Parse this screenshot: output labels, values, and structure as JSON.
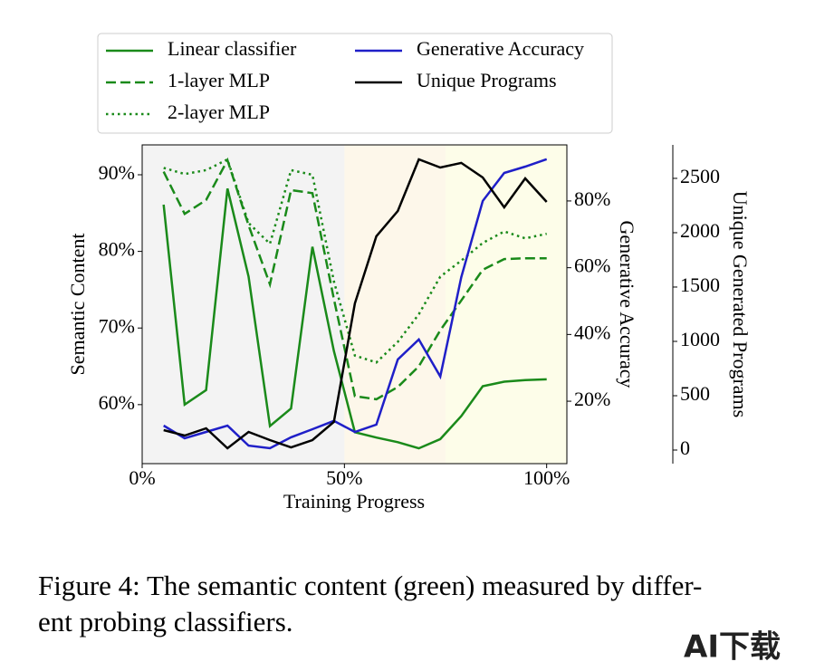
{
  "chart_data": {
    "type": "line",
    "x": [
      5.3,
      10.5,
      15.8,
      21.1,
      26.3,
      31.6,
      36.8,
      42.1,
      47.4,
      52.6,
      57.9,
      63.2,
      68.4,
      73.7,
      78.9,
      84.2,
      89.5,
      94.7,
      100
    ],
    "xlim": [
      0,
      105
    ],
    "xticks": [
      {
        "value": 0,
        "label": "0%"
      },
      {
        "value": 50,
        "label": "50%"
      },
      {
        "value": 100,
        "label": "100%"
      }
    ],
    "xlabel": "Training Progress",
    "ylabel": "Semantic Content",
    "ylim": [
      52.3,
      93.9
    ],
    "yticks": [
      {
        "value": 60,
        "label": "60%"
      },
      {
        "value": 70,
        "label": "70%"
      },
      {
        "value": 80,
        "label": "80%"
      },
      {
        "value": 90,
        "label": "90%"
      }
    ],
    "y2label": "Generative Accuracy",
    "y2lim": [
      1.3,
      96.8
    ],
    "y2ticks": [
      {
        "value": 20,
        "label": "20%"
      },
      {
        "value": 40,
        "label": "40%"
      },
      {
        "value": 60,
        "label": "60%"
      },
      {
        "value": 80,
        "label": "80%"
      }
    ],
    "y3label": "Unique Generated Programs",
    "y3lim": [
      -125,
      2808
    ],
    "y3ticks": [
      0,
      500,
      1000,
      1500,
      2000,
      2500
    ],
    "shaded_regions": [
      {
        "x": [
          0,
          50
        ],
        "color": "#f3f3f3"
      },
      {
        "x": [
          50,
          75
        ],
        "color": "#fdf7ea"
      },
      {
        "x": [
          75,
          105
        ],
        "color": "#fdfde9"
      }
    ],
    "legend": "upper center",
    "series": [
      {
        "name": "Linear classifier",
        "color": "#1a8a1a",
        "linestyle": "solid",
        "axis": "y",
        "values": [
          86.1,
          60.0,
          61.9,
          88.2,
          76.7,
          57.2,
          59.5,
          80.6,
          67.0,
          56.4,
          55.7,
          55.1,
          54.3,
          55.5,
          58.5,
          62.4,
          63.0,
          63.2,
          63.3
        ]
      },
      {
        "name": "1-layer MLP",
        "color": "#1a8a1a",
        "linestyle": "dashed",
        "axis": "y",
        "values": [
          90.4,
          84.9,
          86.7,
          91.9,
          83.4,
          75.7,
          88.0,
          87.6,
          73.8,
          61.1,
          60.7,
          62.3,
          65.0,
          69.7,
          73.6,
          77.6,
          79.0,
          79.1,
          79.1
        ]
      },
      {
        "name": "2-layer MLP",
        "color": "#1a8a1a",
        "linestyle": "dotted",
        "axis": "y",
        "values": [
          90.9,
          90.1,
          90.6,
          92.0,
          83.7,
          81.0,
          90.6,
          90.0,
          76.1,
          66.4,
          65.5,
          68.2,
          71.8,
          76.7,
          78.8,
          81.1,
          82.6,
          81.7,
          82.3
        ]
      },
      {
        "name": "Generative Accuracy",
        "color": "#1f1fc8",
        "linestyle": "solid",
        "axis": "y2",
        "values": [
          12.7,
          8.9,
          10.8,
          12.7,
          6.7,
          5.9,
          9.2,
          11.6,
          14.1,
          10.8,
          13.0,
          32.5,
          38.5,
          27.4,
          57.2,
          80.0,
          88.4,
          90.3,
          92.5
        ]
      },
      {
        "name": "Unique Programs",
        "color": "#000000",
        "linestyle": "solid",
        "axis": "y3",
        "values": [
          183,
          133,
          200,
          17,
          167,
          92,
          25,
          92,
          258,
          1350,
          1967,
          2200,
          2675,
          2600,
          2642,
          2508,
          2233,
          2500,
          2283
        ]
      }
    ]
  },
  "caption": [
    "Figure 4: The semantic content (green) measured by differ-",
    "ent probing classifiers."
  ],
  "watermark": "AI下载"
}
